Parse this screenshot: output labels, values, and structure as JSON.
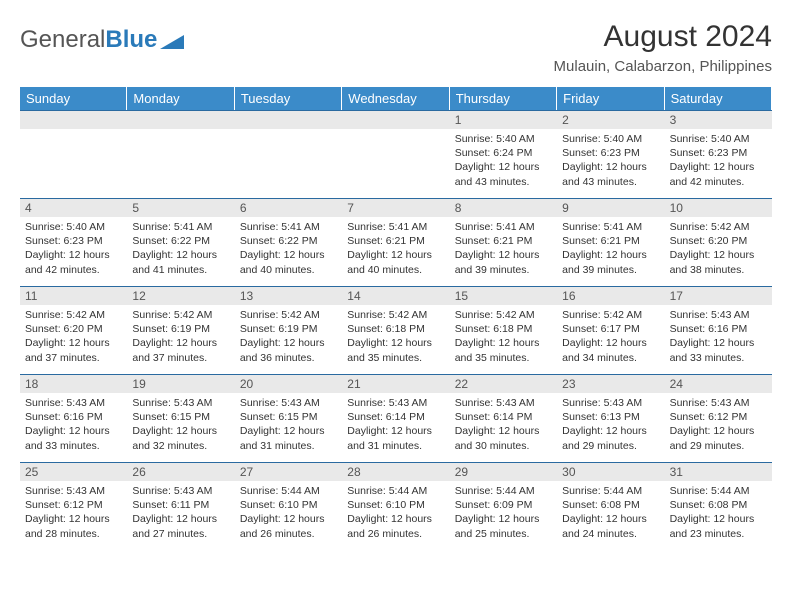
{
  "brand": {
    "part1": "General",
    "part2": "Blue"
  },
  "title": "August 2024",
  "location": "Mulauin, Calabarzon, Philippines",
  "colors": {
    "header_bg": "#3b8bc9",
    "border": "#2a6aa0",
    "daynum_bg": "#e9e9e9",
    "text": "#333333",
    "brand_blue": "#2a7ab9"
  },
  "days_header": [
    "Sunday",
    "Monday",
    "Tuesday",
    "Wednesday",
    "Thursday",
    "Friday",
    "Saturday"
  ],
  "leading_blanks": 4,
  "days": [
    {
      "n": 1,
      "sunrise": "5:40 AM",
      "sunset": "6:24 PM",
      "daylight": "12 hours and 43 minutes."
    },
    {
      "n": 2,
      "sunrise": "5:40 AM",
      "sunset": "6:23 PM",
      "daylight": "12 hours and 43 minutes."
    },
    {
      "n": 3,
      "sunrise": "5:40 AM",
      "sunset": "6:23 PM",
      "daylight": "12 hours and 42 minutes."
    },
    {
      "n": 4,
      "sunrise": "5:40 AM",
      "sunset": "6:23 PM",
      "daylight": "12 hours and 42 minutes."
    },
    {
      "n": 5,
      "sunrise": "5:41 AM",
      "sunset": "6:22 PM",
      "daylight": "12 hours and 41 minutes."
    },
    {
      "n": 6,
      "sunrise": "5:41 AM",
      "sunset": "6:22 PM",
      "daylight": "12 hours and 40 minutes."
    },
    {
      "n": 7,
      "sunrise": "5:41 AM",
      "sunset": "6:21 PM",
      "daylight": "12 hours and 40 minutes."
    },
    {
      "n": 8,
      "sunrise": "5:41 AM",
      "sunset": "6:21 PM",
      "daylight": "12 hours and 39 minutes."
    },
    {
      "n": 9,
      "sunrise": "5:41 AM",
      "sunset": "6:21 PM",
      "daylight": "12 hours and 39 minutes."
    },
    {
      "n": 10,
      "sunrise": "5:42 AM",
      "sunset": "6:20 PM",
      "daylight": "12 hours and 38 minutes."
    },
    {
      "n": 11,
      "sunrise": "5:42 AM",
      "sunset": "6:20 PM",
      "daylight": "12 hours and 37 minutes."
    },
    {
      "n": 12,
      "sunrise": "5:42 AM",
      "sunset": "6:19 PM",
      "daylight": "12 hours and 37 minutes."
    },
    {
      "n": 13,
      "sunrise": "5:42 AM",
      "sunset": "6:19 PM",
      "daylight": "12 hours and 36 minutes."
    },
    {
      "n": 14,
      "sunrise": "5:42 AM",
      "sunset": "6:18 PM",
      "daylight": "12 hours and 35 minutes."
    },
    {
      "n": 15,
      "sunrise": "5:42 AM",
      "sunset": "6:18 PM",
      "daylight": "12 hours and 35 minutes."
    },
    {
      "n": 16,
      "sunrise": "5:42 AM",
      "sunset": "6:17 PM",
      "daylight": "12 hours and 34 minutes."
    },
    {
      "n": 17,
      "sunrise": "5:43 AM",
      "sunset": "6:16 PM",
      "daylight": "12 hours and 33 minutes."
    },
    {
      "n": 18,
      "sunrise": "5:43 AM",
      "sunset": "6:16 PM",
      "daylight": "12 hours and 33 minutes."
    },
    {
      "n": 19,
      "sunrise": "5:43 AM",
      "sunset": "6:15 PM",
      "daylight": "12 hours and 32 minutes."
    },
    {
      "n": 20,
      "sunrise": "5:43 AM",
      "sunset": "6:15 PM",
      "daylight": "12 hours and 31 minutes."
    },
    {
      "n": 21,
      "sunrise": "5:43 AM",
      "sunset": "6:14 PM",
      "daylight": "12 hours and 31 minutes."
    },
    {
      "n": 22,
      "sunrise": "5:43 AM",
      "sunset": "6:14 PM",
      "daylight": "12 hours and 30 minutes."
    },
    {
      "n": 23,
      "sunrise": "5:43 AM",
      "sunset": "6:13 PM",
      "daylight": "12 hours and 29 minutes."
    },
    {
      "n": 24,
      "sunrise": "5:43 AM",
      "sunset": "6:12 PM",
      "daylight": "12 hours and 29 minutes."
    },
    {
      "n": 25,
      "sunrise": "5:43 AM",
      "sunset": "6:12 PM",
      "daylight": "12 hours and 28 minutes."
    },
    {
      "n": 26,
      "sunrise": "5:43 AM",
      "sunset": "6:11 PM",
      "daylight": "12 hours and 27 minutes."
    },
    {
      "n": 27,
      "sunrise": "5:44 AM",
      "sunset": "6:10 PM",
      "daylight": "12 hours and 26 minutes."
    },
    {
      "n": 28,
      "sunrise": "5:44 AM",
      "sunset": "6:10 PM",
      "daylight": "12 hours and 26 minutes."
    },
    {
      "n": 29,
      "sunrise": "5:44 AM",
      "sunset": "6:09 PM",
      "daylight": "12 hours and 25 minutes."
    },
    {
      "n": 30,
      "sunrise": "5:44 AM",
      "sunset": "6:08 PM",
      "daylight": "12 hours and 24 minutes."
    },
    {
      "n": 31,
      "sunrise": "5:44 AM",
      "sunset": "6:08 PM",
      "daylight": "12 hours and 23 minutes."
    }
  ],
  "labels": {
    "sunrise": "Sunrise: ",
    "sunset": "Sunset: ",
    "daylight": "Daylight: "
  }
}
